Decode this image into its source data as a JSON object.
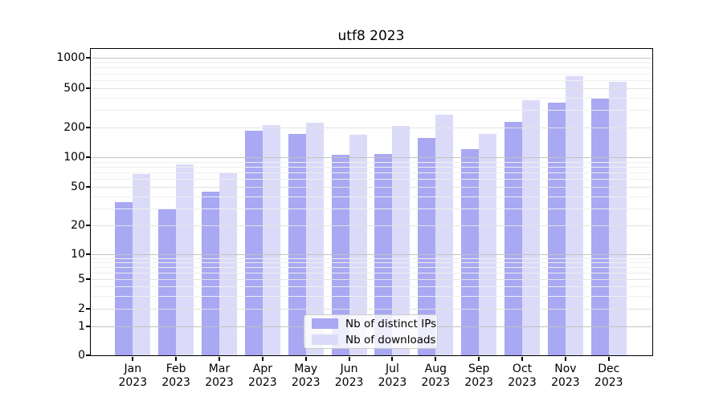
{
  "title": "utf8 2023",
  "chart_data": {
    "type": "bar",
    "title": "utf8 2023",
    "categories": [
      "Jan",
      "Feb",
      "Mar",
      "Apr",
      "May",
      "Jun",
      "Jul",
      "Aug",
      "Sep",
      "Oct",
      "Nov",
      "Dec"
    ],
    "year_label": "2023",
    "series": [
      {
        "name": "Nb of distinct IPs",
        "color": "#a8a8f3",
        "values": [
          35,
          30,
          45,
          185,
          172,
          105,
          108,
          158,
          120,
          228,
          360,
          400
        ]
      },
      {
        "name": "Nb of downloads",
        "color": "#dbdbf9",
        "values": [
          68,
          85,
          70,
          210,
          222,
          170,
          207,
          272,
          172,
          380,
          660,
          580
        ]
      }
    ],
    "y_axis": {
      "scale": "symlog",
      "ticks": [
        0,
        1,
        2,
        5,
        10,
        20,
        50,
        100,
        200,
        500,
        1000
      ],
      "minor_gridlines": [
        3,
        4,
        6,
        7,
        8,
        9,
        30,
        40,
        60,
        70,
        80,
        90,
        300,
        400,
        600,
        700,
        800,
        900
      ]
    },
    "xlabel": "",
    "ylabel": "",
    "ylim": [
      0,
      1200
    ],
    "grid": true,
    "grid_over_bars": true,
    "legend_position": "lower-center",
    "colors": {
      "decade_gridline": "#c2c2c2",
      "labeled_gridline": "#e2e2e2",
      "minor_gridline": "#efefef",
      "axis": "#000000",
      "background": "#ffffff"
    }
  },
  "legend": {
    "items": [
      {
        "label": "Nb of distinct IPs"
      },
      {
        "label": "Nb of downloads"
      }
    ]
  }
}
